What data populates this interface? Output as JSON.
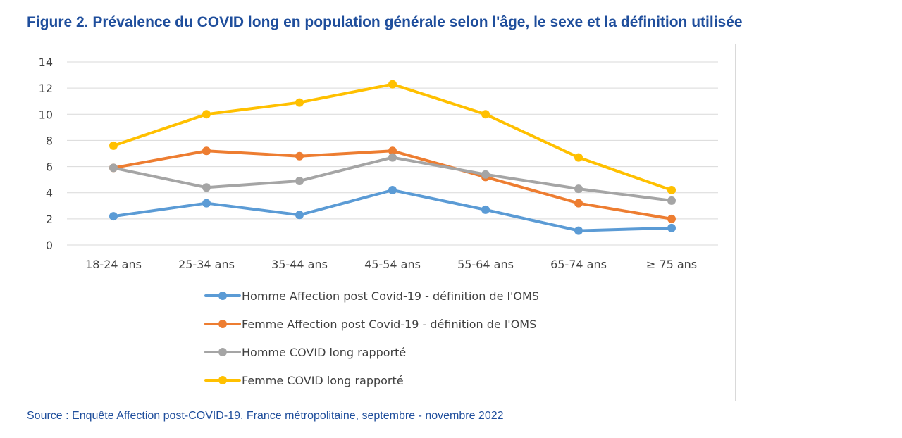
{
  "figure": {
    "title": "Figure 2. Prévalence du COVID long en population générale selon l'âge, le sexe et la définition utilisée",
    "source": "Source : Enquête Affection post-COVID-19, France métropolitaine, septembre - novembre 2022"
  },
  "chart_data": {
    "type": "line",
    "categories": [
      "18-24 ans",
      "25-34 ans",
      "35-44 ans",
      "45-54 ans",
      "55-64 ans",
      "65-74 ans",
      "≥ 75 ans"
    ],
    "ylim": [
      0,
      14
    ],
    "yticks": [
      0,
      2,
      4,
      6,
      8,
      10,
      12,
      14
    ],
    "grid": true,
    "legend_position": "bottom",
    "xlabel": "",
    "ylabel": "",
    "series": [
      {
        "name": "Homme Affection post Covid-19 - définition de l'OMS",
        "color": "#5b9bd5",
        "values": [
          2.2,
          3.2,
          2.3,
          4.2,
          2.7,
          1.1,
          1.3
        ]
      },
      {
        "name": "Femme Affection post Covid-19 - définition de l'OMS",
        "color": "#ed7d31",
        "values": [
          5.9,
          7.2,
          6.8,
          7.2,
          5.2,
          3.2,
          2.0
        ]
      },
      {
        "name": "Homme COVID long rapporté",
        "color": "#a5a5a5",
        "values": [
          5.9,
          4.4,
          4.9,
          6.7,
          5.4,
          4.3,
          3.4
        ]
      },
      {
        "name": "Femme COVID long rapporté",
        "color": "#ffc000",
        "values": [
          7.6,
          10.0,
          10.9,
          12.3,
          10.0,
          6.7,
          4.2
        ]
      }
    ]
  }
}
